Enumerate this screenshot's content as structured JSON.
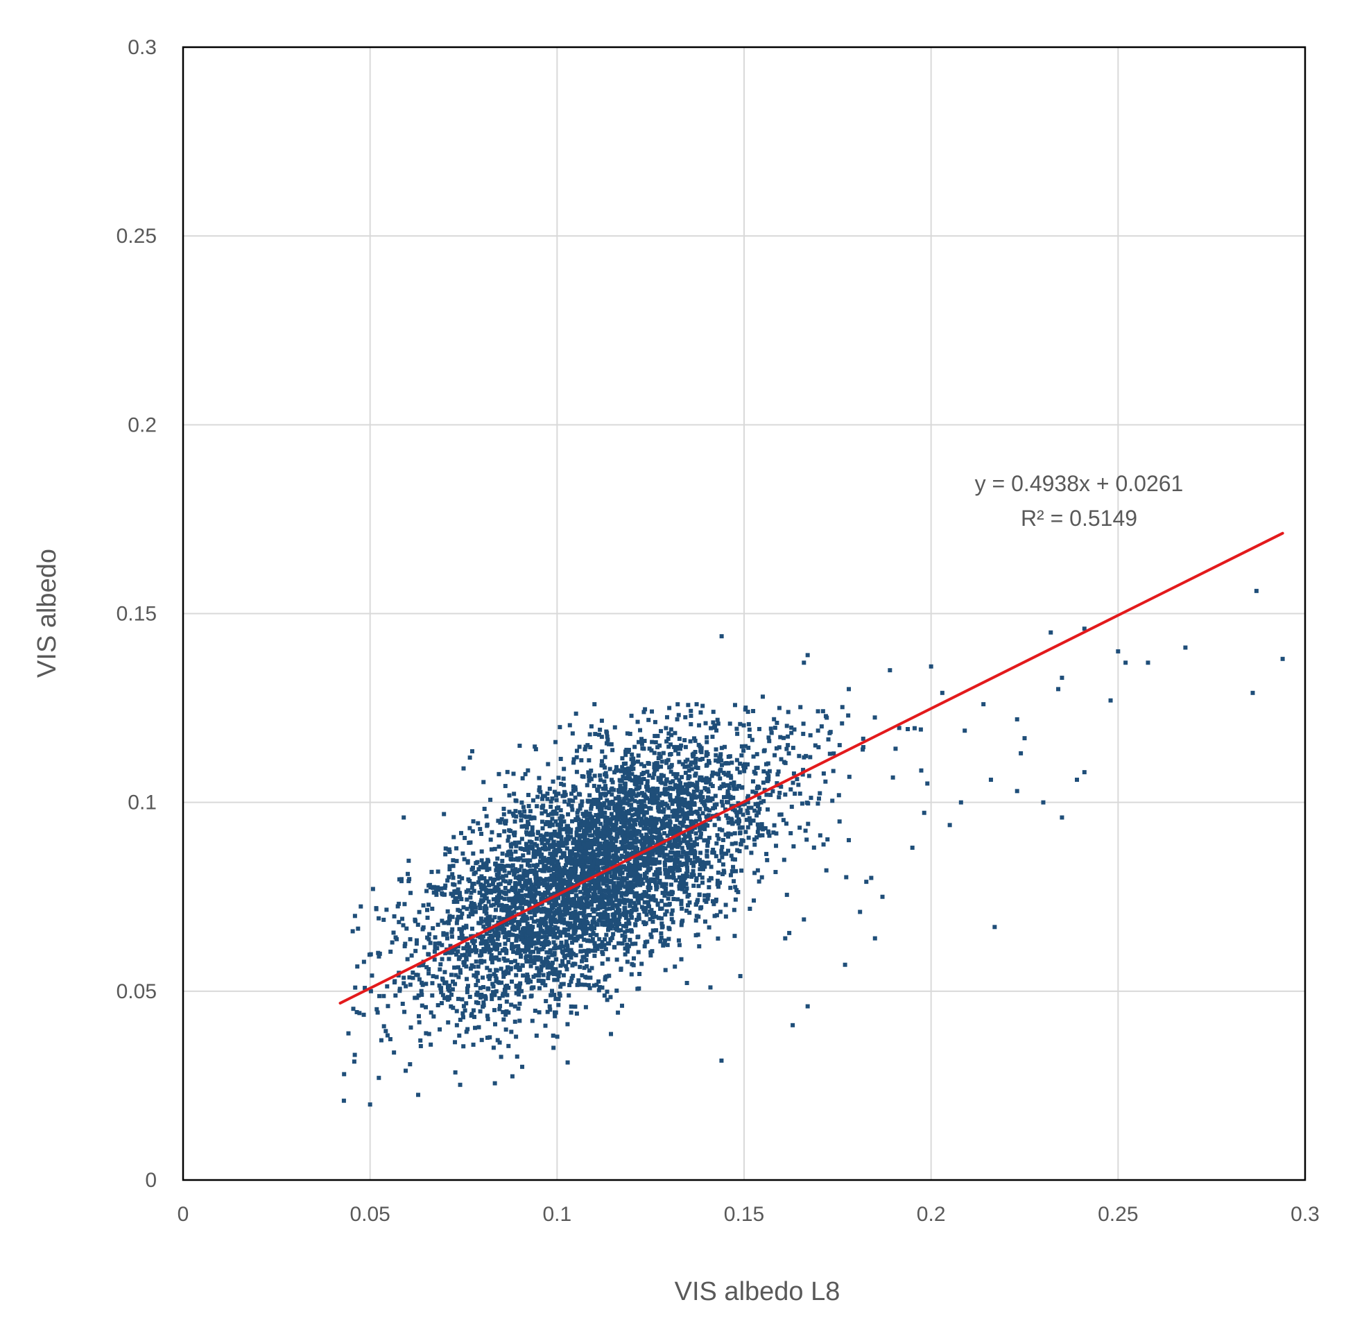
{
  "chart_data": {
    "type": "scatter",
    "title": "",
    "xlabel": "VIS albedo L8",
    "ylabel": "VIS albedo",
    "xlim": [
      0,
      0.3
    ],
    "ylim": [
      0,
      0.3
    ],
    "x_ticks": [
      "0",
      "0.05",
      "0.1",
      "0.15",
      "0.2",
      "0.25",
      "0.3"
    ],
    "y_ticks": [
      "0",
      "0.05",
      "0.1",
      "0.15",
      "0.2",
      "0.25",
      "0.3"
    ],
    "grid": true,
    "legend": "none",
    "marker_color": "#1f4e79",
    "trendline_color": "#e31a1c",
    "trendline": {
      "slope": 0.4938,
      "intercept": 0.0261,
      "x_range": [
        0.042,
        0.294
      ],
      "equation": "y = 0.4938x + 0.0261",
      "r_squared": "R² = 0.5149"
    },
    "outliers": [
      [
        0.287,
        0.156
      ],
      [
        0.294,
        0.138
      ],
      [
        0.286,
        0.129
      ],
      [
        0.268,
        0.141
      ],
      [
        0.258,
        0.137
      ],
      [
        0.252,
        0.137
      ],
      [
        0.25,
        0.14
      ],
      [
        0.248,
        0.127
      ],
      [
        0.241,
        0.146
      ],
      [
        0.241,
        0.108
      ],
      [
        0.239,
        0.106
      ],
      [
        0.235,
        0.096
      ],
      [
        0.235,
        0.133
      ],
      [
        0.234,
        0.13
      ],
      [
        0.232,
        0.145
      ],
      [
        0.23,
        0.1
      ],
      [
        0.225,
        0.117
      ],
      [
        0.224,
        0.113
      ],
      [
        0.223,
        0.103
      ],
      [
        0.223,
        0.122
      ],
      [
        0.217,
        0.067
      ],
      [
        0.216,
        0.106
      ],
      [
        0.214,
        0.126
      ],
      [
        0.209,
        0.119
      ],
      [
        0.208,
        0.1
      ],
      [
        0.205,
        0.094
      ],
      [
        0.2,
        0.136
      ],
      [
        0.203,
        0.129
      ],
      [
        0.167,
        0.139
      ],
      [
        0.144,
        0.144
      ],
      [
        0.189,
        0.135
      ],
      [
        0.178,
        0.13
      ],
      [
        0.166,
        0.137
      ],
      [
        0.163,
        0.041
      ],
      [
        0.167,
        0.046
      ],
      [
        0.177,
        0.057
      ],
      [
        0.185,
        0.064
      ],
      [
        0.181,
        0.071
      ],
      [
        0.187,
        0.075
      ],
      [
        0.149,
        0.054
      ],
      [
        0.141,
        0.051
      ],
      [
        0.166,
        0.069
      ],
      [
        0.161,
        0.064
      ],
      [
        0.09,
        0.115
      ],
      [
        0.075,
        0.109
      ],
      [
        0.059,
        0.096
      ],
      [
        0.043,
        0.021
      ],
      [
        0.05,
        0.02
      ],
      [
        0.11,
        0.126
      ],
      [
        0.13,
        0.125
      ],
      [
        0.155,
        0.128
      ],
      [
        0.195,
        0.088
      ],
      [
        0.199,
        0.105
      ],
      [
        0.184,
        0.08
      ],
      [
        0.178,
        0.09
      ],
      [
        0.172,
        0.082
      ]
    ],
    "cluster": {
      "n_points": 4800,
      "center_x": 0.11,
      "center_y": 0.084,
      "sd_x": 0.022,
      "sd_y": 0.014,
      "x_min": 0.042,
      "x_max": 0.2,
      "y_min": 0.019,
      "y_max": 0.126
    }
  }
}
